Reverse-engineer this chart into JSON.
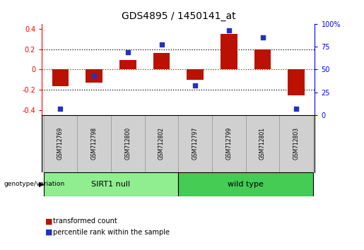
{
  "title": "GDS4895 / 1450141_at",
  "samples": [
    "GSM712769",
    "GSM712798",
    "GSM712800",
    "GSM712802",
    "GSM712797",
    "GSM712799",
    "GSM712801",
    "GSM712803"
  ],
  "groups": [
    {
      "name": "SIRT1 null",
      "count": 4,
      "color": "#90EE90"
    },
    {
      "name": "wild type",
      "count": 4,
      "color": "#44CC55"
    }
  ],
  "bar_values": [
    -0.165,
    -0.13,
    0.09,
    0.16,
    -0.105,
    0.35,
    0.2,
    -0.255
  ],
  "scatter_pct": [
    7,
    43,
    69,
    77,
    32,
    93,
    85,
    7
  ],
  "bar_color": "#BB1100",
  "scatter_color": "#2233BB",
  "ylim_left": [
    -0.45,
    0.45
  ],
  "yticks_left": [
    -0.4,
    -0.2,
    0.0,
    0.2,
    0.4
  ],
  "yticks_right": [
    0,
    25,
    50,
    75,
    100
  ],
  "hlines": [
    [
      -0.2,
      "black"
    ],
    [
      0.0,
      "red"
    ],
    [
      0.2,
      "black"
    ]
  ],
  "bar_width": 0.5,
  "legend_label_bar": "transformed count",
  "legend_label_scatter": "percentile rank within the sample",
  "group_row_label": "genotype/variation",
  "bg_color": "#ffffff",
  "sample_box_color": "#D0D0D0",
  "sample_box_edge": "#999999",
  "title_fontsize": 10,
  "axis_fontsize": 7,
  "sample_fontsize": 5.5,
  "group_fontsize": 8,
  "legend_fontsize": 7
}
